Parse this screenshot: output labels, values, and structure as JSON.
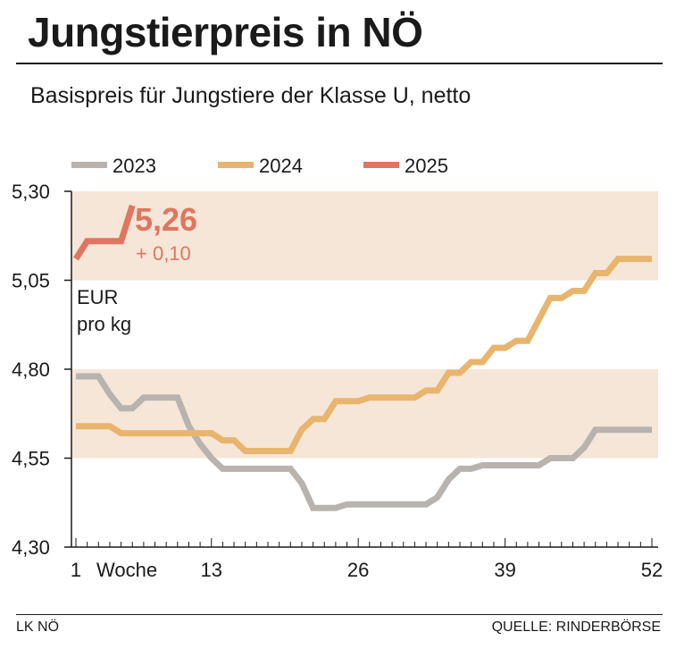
{
  "header": {
    "title": "Jungstierpreis in NÖ",
    "subtitle": "Basispreis für Jungstiere der Klasse U, netto"
  },
  "footer": {
    "source_left": "LK NÖ",
    "source_right": "QUELLE: RINDERBÖRSE"
  },
  "chart_data": {
    "type": "line",
    "title": "Jungstierpreis in NÖ",
    "subtitle": "Basispreis für Jungstiere der Klasse U, netto",
    "xlabel": "Woche",
    "ylabel": "EUR pro kg",
    "unit_label_line1": "EUR",
    "unit_label_line2": "pro kg",
    "xlim": [
      1,
      52
    ],
    "ylim": [
      4.3,
      5.3
    ],
    "x_tick_labels": [
      {
        "x": 1,
        "label": "1"
      },
      {
        "x": 13,
        "label": "13"
      },
      {
        "x": 26,
        "label": "26"
      },
      {
        "x": 39,
        "label": "39"
      },
      {
        "x": 52,
        "label": "52"
      }
    ],
    "y_tick_labels": [
      {
        "y": 4.3,
        "label": "4,30"
      },
      {
        "y": 4.55,
        "label": "4,55"
      },
      {
        "y": 4.8,
        "label": "4,80"
      },
      {
        "y": 5.05,
        "label": "5,05"
      },
      {
        "y": 5.3,
        "label": "5,30"
      }
    ],
    "shaded_bands": [
      [
        4.55,
        4.8
      ],
      [
        5.05,
        5.3
      ]
    ],
    "band_color": "#f6e6d8",
    "grid": false,
    "legend_position": "top",
    "series": [
      {
        "name": "2023",
        "color": "#b8b3ae",
        "x": [
          1,
          2,
          3,
          4,
          5,
          6,
          7,
          8,
          9,
          10,
          11,
          12,
          13,
          14,
          15,
          16,
          17,
          18,
          19,
          20,
          21,
          22,
          23,
          24,
          25,
          26,
          27,
          28,
          29,
          30,
          31,
          32,
          33,
          34,
          35,
          36,
          37,
          38,
          39,
          40,
          41,
          42,
          43,
          44,
          45,
          46,
          47,
          48,
          49,
          50,
          51,
          52
        ],
        "values": [
          4.78,
          4.78,
          4.78,
          4.73,
          4.69,
          4.69,
          4.72,
          4.72,
          4.72,
          4.72,
          4.64,
          4.59,
          4.55,
          4.52,
          4.52,
          4.52,
          4.52,
          4.52,
          4.52,
          4.52,
          4.48,
          4.41,
          4.41,
          4.41,
          4.42,
          4.42,
          4.42,
          4.42,
          4.42,
          4.42,
          4.42,
          4.42,
          4.44,
          4.49,
          4.52,
          4.52,
          4.53,
          4.53,
          4.53,
          4.53,
          4.53,
          4.53,
          4.55,
          4.55,
          4.55,
          4.58,
          4.63,
          4.63,
          4.63,
          4.63,
          4.63,
          4.63
        ]
      },
      {
        "name": "2024",
        "color": "#e9b46d",
        "x": [
          1,
          2,
          3,
          4,
          5,
          6,
          7,
          8,
          9,
          10,
          11,
          12,
          13,
          14,
          15,
          16,
          17,
          18,
          19,
          20,
          21,
          22,
          23,
          24,
          25,
          26,
          27,
          28,
          29,
          30,
          31,
          32,
          33,
          34,
          35,
          36,
          37,
          38,
          39,
          40,
          41,
          42,
          43,
          44,
          45,
          46,
          47,
          48,
          49,
          50,
          51,
          52
        ],
        "values": [
          4.64,
          4.64,
          4.64,
          4.64,
          4.62,
          4.62,
          4.62,
          4.62,
          4.62,
          4.62,
          4.62,
          4.62,
          4.62,
          4.6,
          4.6,
          4.57,
          4.57,
          4.57,
          4.57,
          4.57,
          4.63,
          4.66,
          4.66,
          4.71,
          4.71,
          4.71,
          4.72,
          4.72,
          4.72,
          4.72,
          4.72,
          4.74,
          4.74,
          4.79,
          4.79,
          4.82,
          4.82,
          4.86,
          4.86,
          4.88,
          4.88,
          4.94,
          5.0,
          5.0,
          5.02,
          5.02,
          5.07,
          5.07,
          5.11,
          5.11,
          5.11,
          5.11
        ]
      },
      {
        "name": "2025",
        "color": "#e07560",
        "x": [
          1,
          2,
          3,
          4,
          5,
          6
        ],
        "values": [
          5.11,
          5.16,
          5.16,
          5.16,
          5.16,
          5.26
        ]
      }
    ],
    "annotation": {
      "value_label": "5,26",
      "change_label": "+ 0,10",
      "color": "#e07560"
    }
  }
}
